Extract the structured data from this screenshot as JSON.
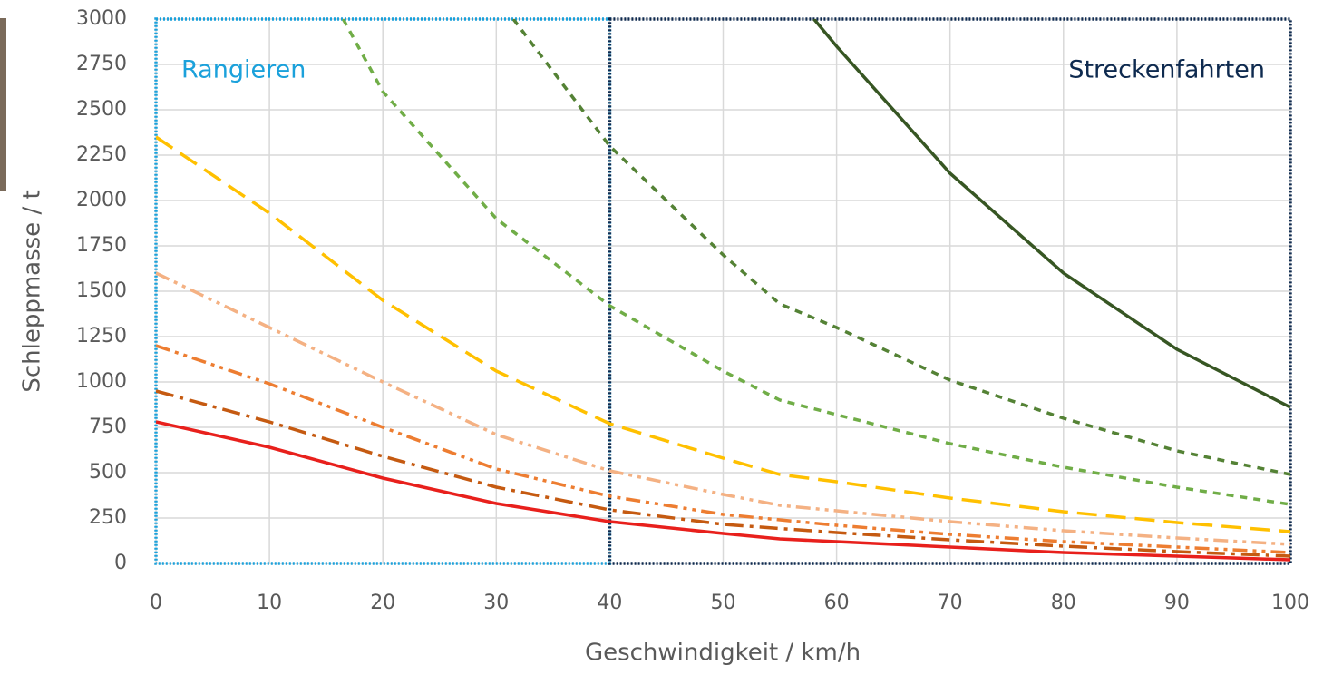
{
  "chart_data": {
    "type": "line",
    "x_label": "Geschwindigkeit / km/h",
    "y_label": "Schleppmasse / t",
    "xlim": [
      0,
      100
    ],
    "xticks": [
      0,
      10,
      20,
      30,
      40,
      50,
      60,
      70,
      80,
      90,
      100
    ],
    "ylim": [
      0,
      3000
    ],
    "yticks": [
      0,
      250,
      500,
      750,
      1000,
      1250,
      1500,
      1750,
      2000,
      2250,
      2500,
      2750,
      3000
    ],
    "grid": true,
    "regions": [
      {
        "label": "Rangieren",
        "x": [
          0,
          40
        ],
        "color": "#1ba1db",
        "label_position": "left"
      },
      {
        "label": "Streckenfahrten",
        "x": [
          40,
          100
        ],
        "color": "#0e2a4f",
        "label_position": "right"
      }
    ],
    "series": [
      {
        "color": "#e8201c",
        "dash": "solid",
        "x": [
          0,
          10,
          20,
          30,
          40,
          50,
          55,
          60,
          70,
          80,
          90,
          100
        ],
        "values": [
          780,
          640,
          470,
          330,
          230,
          165,
          135,
          120,
          90,
          60,
          40,
          20
        ]
      },
      {
        "color": "#c55a11",
        "dash": "dash-dot",
        "x": [
          0,
          10,
          20,
          30,
          40,
          50,
          60,
          70,
          80,
          90,
          100
        ],
        "values": [
          950,
          780,
          590,
          420,
          295,
          215,
          170,
          130,
          95,
          65,
          40
        ]
      },
      {
        "color": "#ed7d31",
        "dash": "dash-dot-dot",
        "x": [
          0,
          10,
          20,
          30,
          40,
          50,
          60,
          70,
          80,
          90,
          100
        ],
        "values": [
          1200,
          990,
          750,
          520,
          370,
          270,
          210,
          160,
          120,
          90,
          60
        ]
      },
      {
        "color": "#f4b183",
        "dash": "dash-dot-dot",
        "x": [
          0,
          10,
          20,
          30,
          40,
          50,
          55,
          60,
          70,
          80,
          90,
          100
        ],
        "values": [
          1600,
          1300,
          1000,
          710,
          510,
          380,
          320,
          290,
          230,
          180,
          140,
          105
        ]
      },
      {
        "color": "#ffc000",
        "dash": "long-dash",
        "x": [
          0,
          10,
          20,
          30,
          40,
          50,
          55,
          60,
          70,
          80,
          90,
          100
        ],
        "values": [
          2350,
          1930,
          1450,
          1060,
          770,
          580,
          490,
          450,
          360,
          285,
          225,
          175
        ]
      },
      {
        "color": "#70ad47",
        "dash": "dash",
        "x": [
          16.5,
          20,
          30,
          40,
          50,
          55,
          60,
          70,
          80,
          90,
          100
        ],
        "values": [
          3000,
          2600,
          1900,
          1420,
          1060,
          900,
          820,
          660,
          530,
          420,
          325
        ]
      },
      {
        "color": "#548235",
        "dash": "dash",
        "x": [
          31.5,
          40,
          50,
          55,
          60,
          70,
          80,
          90,
          100
        ],
        "values": [
          3000,
          2300,
          1700,
          1430,
          1300,
          1010,
          800,
          620,
          490
        ]
      },
      {
        "color": "#375623",
        "dash": "solid",
        "x": [
          58,
          60,
          70,
          80,
          90,
          100
        ],
        "values": [
          3000,
          2850,
          2150,
          1600,
          1180,
          860
        ]
      }
    ]
  }
}
